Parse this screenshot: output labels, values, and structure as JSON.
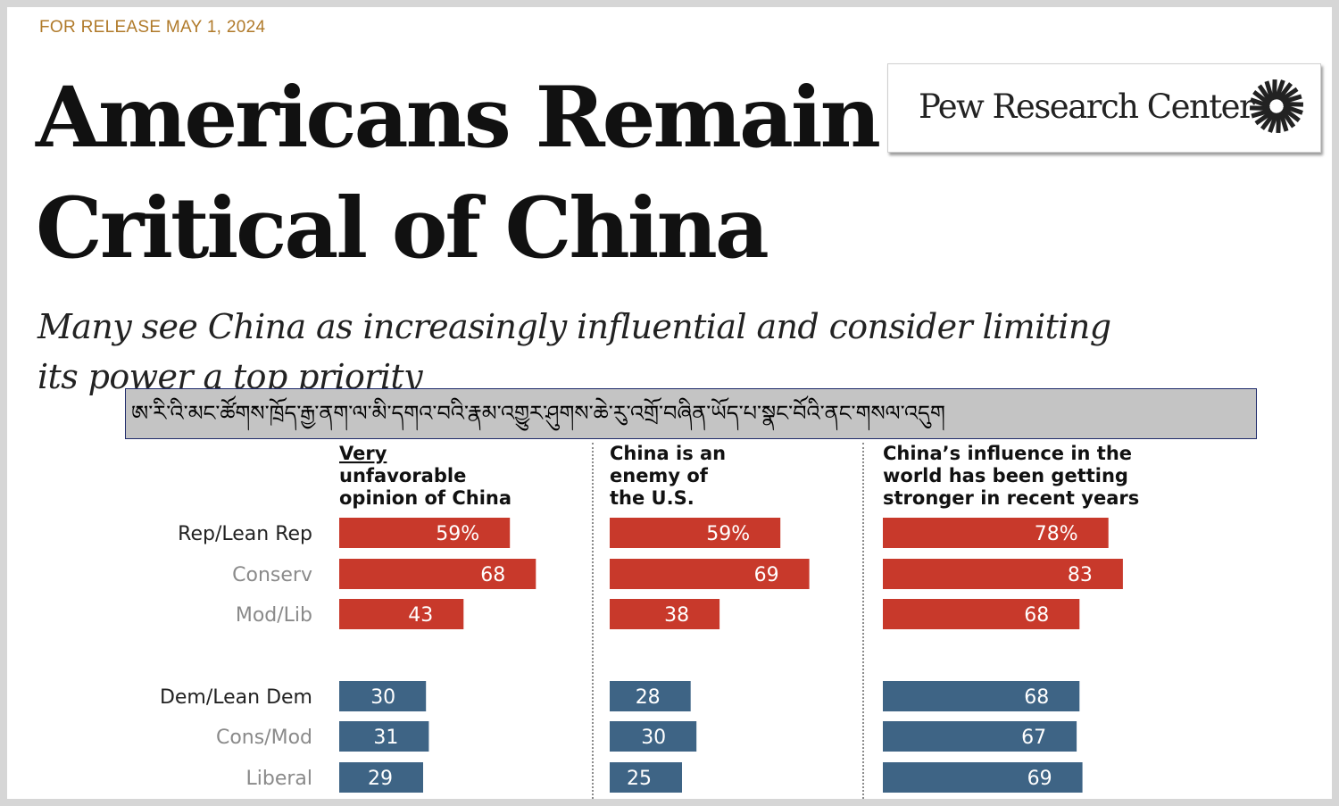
{
  "release": "FOR RELEASE MAY 1, 2024",
  "headline": {
    "line1": "Americans Remain",
    "line2": "Critical of China"
  },
  "subtitle": {
    "line1": "Many see China as increasingly influential and consider limiting",
    "line2": "its power a top priority"
  },
  "logo": {
    "text": "Pew Research Center"
  },
  "tibetan_caption": "ཨ་རི་འི་མང་ཚོགས་ཁྲོད་རྒྱ་ནག་ལ་མི་དགའ་བའི་རྣམ་འགྱུར་ཤུགས་ཆེ་རུ་འགྲོ་བཞིན་ཡོད་པ་སྣང་བོའི་ནང་གསལ་འདུག",
  "colors": {
    "rep": "#c8392b",
    "dem": "#3e6485",
    "release": "#b07a2a"
  },
  "chart_data": {
    "type": "bar",
    "orientation": "horizontal",
    "categories": [
      "Rep/Lean Rep",
      "Conserv",
      "Mod/Lib",
      "Dem/Lean Dem",
      "Cons/Mod",
      "Liberal"
    ],
    "category_style": [
      "main",
      "sub",
      "sub",
      "main",
      "sub",
      "sub"
    ],
    "series": [
      {
        "name": "Very unfavorable opinion of China",
        "title_lines": [
          "Very",
          "unfavorable",
          "opinion of China"
        ],
        "values": [
          59,
          68,
          43,
          30,
          31,
          29
        ],
        "labels": [
          "59%",
          "68",
          "43",
          "30",
          "31",
          "29"
        ]
      },
      {
        "name": "China is an enemy of the U.S.",
        "title_lines": [
          "China is an",
          "enemy of",
          "the U.S."
        ],
        "values": [
          59,
          69,
          38,
          28,
          30,
          25
        ],
        "labels": [
          "59%",
          "69",
          "38",
          "28",
          "30",
          "25"
        ]
      },
      {
        "name": "China's influence in the world has been getting stronger in recent years",
        "title_lines": [
          "China’s influence in the",
          "world has been getting",
          "stronger in recent years"
        ],
        "values": [
          78,
          83,
          68,
          68,
          67,
          69
        ],
        "labels": [
          "78%",
          "83",
          "68",
          "68",
          "67",
          "69"
        ]
      }
    ],
    "groups": [
      "rep",
      "rep",
      "rep",
      "dem",
      "dem",
      "dem"
    ]
  }
}
